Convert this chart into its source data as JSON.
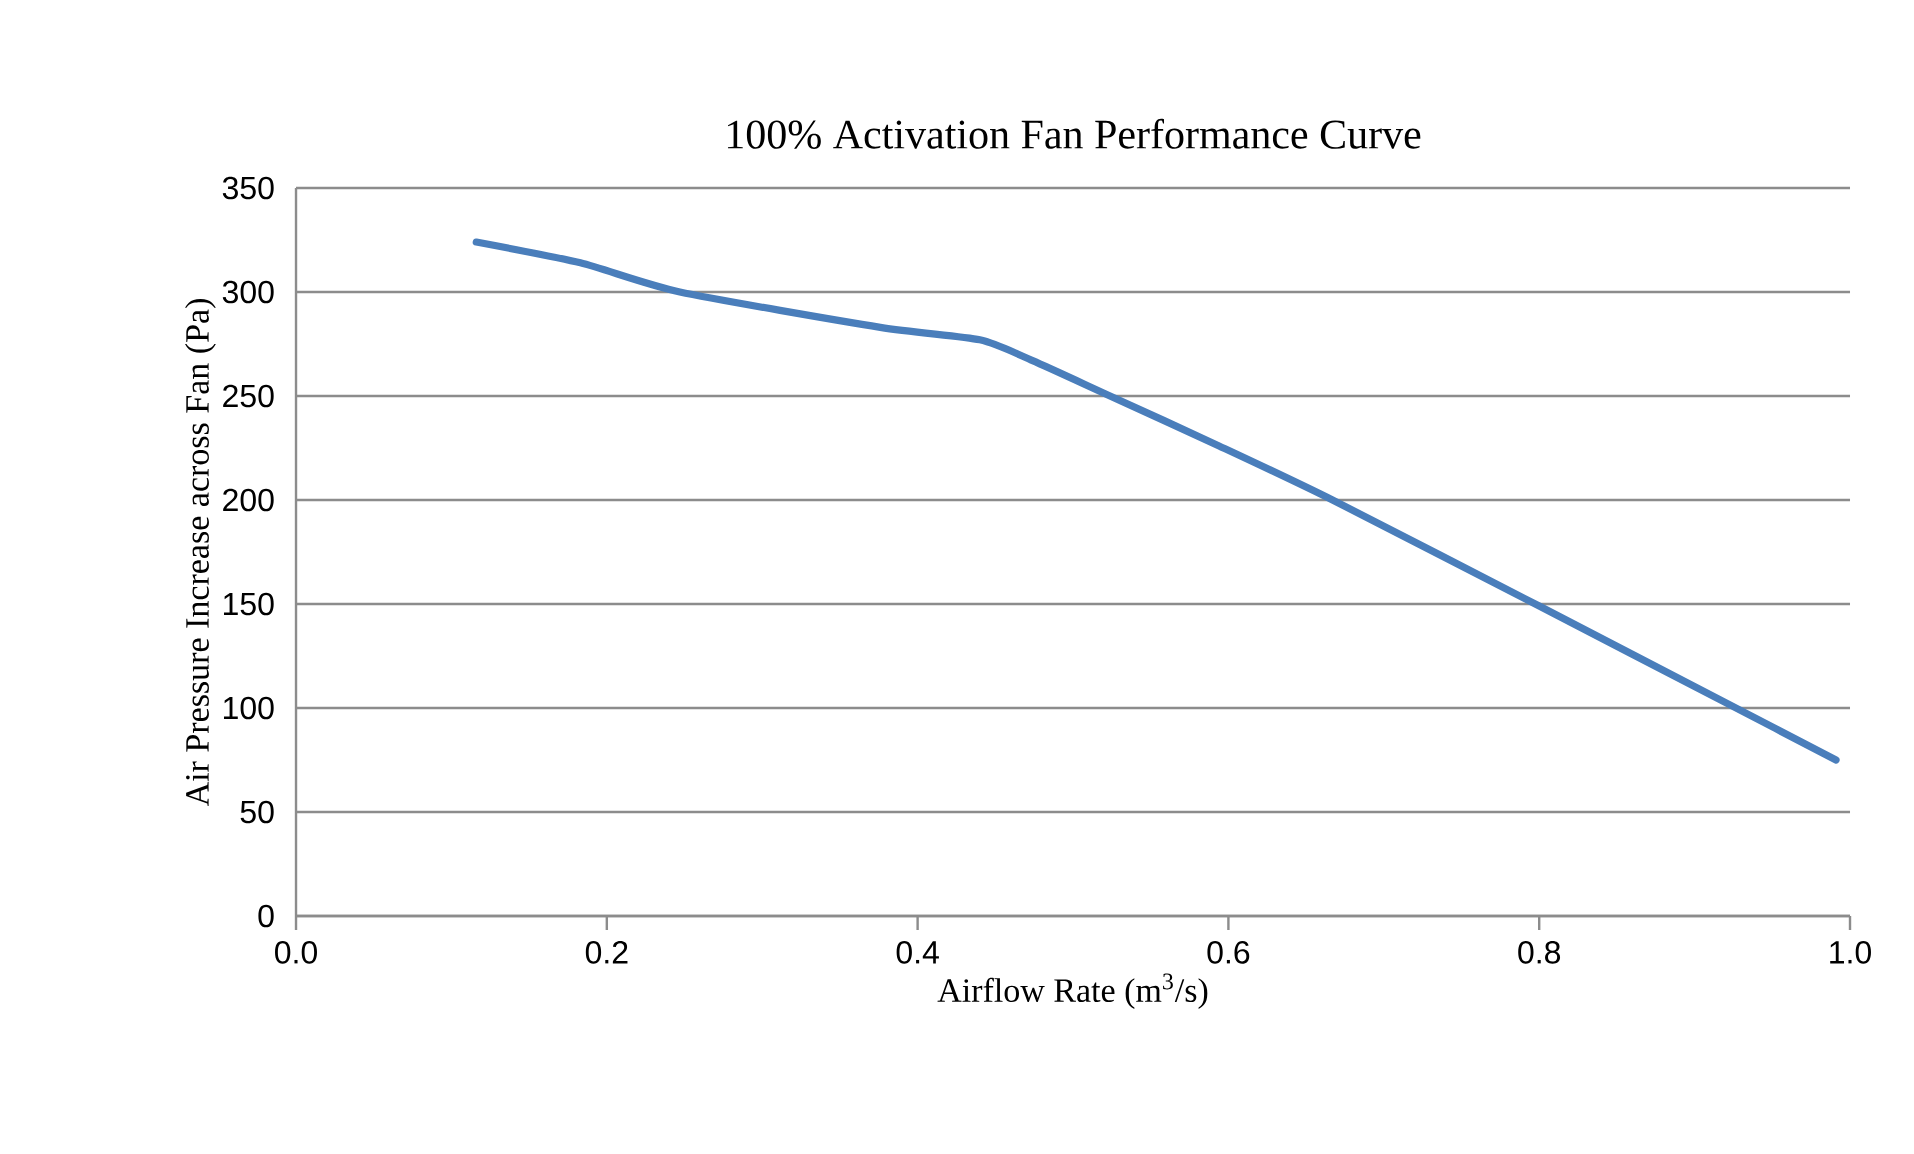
{
  "chart_data": {
    "type": "line",
    "title": "100% Activation Fan Performance Curve",
    "xlabel": "Airflow Rate (m$^{3}$/s)",
    "ylabel": "Air Pressure Increase across Fan (Pa)",
    "xlim": [
      0,
      1
    ],
    "ylim": [
      0,
      350
    ],
    "xticks": [
      {
        "value": 0,
        "label": "0.0"
      },
      {
        "value": 0.2,
        "label": "0.2"
      },
      {
        "value": 0.4,
        "label": "0.4"
      },
      {
        "value": 0.6,
        "label": "0.6"
      },
      {
        "value": 0.8,
        "label": "0.8"
      },
      {
        "value": 1,
        "label": "1.0"
      }
    ],
    "yticks": [
      0,
      50,
      100,
      150,
      200,
      250,
      300,
      350
    ],
    "grid": "y",
    "marker": "none",
    "line_style": "solid",
    "series": [
      {
        "color": "#4a7ebb",
        "x": [
          0.116,
          0.183,
          0.247,
          0.376,
          0.44,
          0.474,
          0.521,
          0.594,
          0.667,
          0.8,
          0.924,
          0.991
        ],
        "values": [
          324,
          314,
          300,
          283,
          277,
          267,
          251,
          226,
          200,
          149,
          101,
          75
        ]
      }
    ]
  }
}
